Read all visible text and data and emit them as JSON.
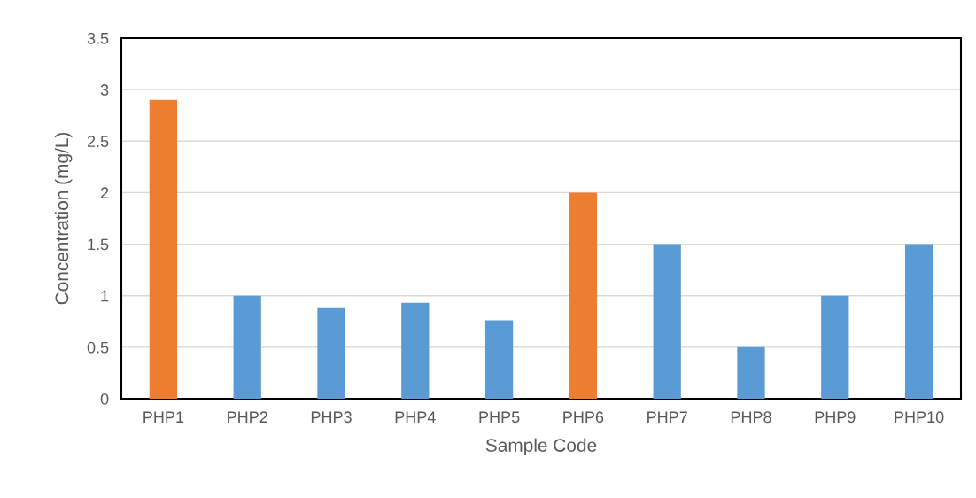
{
  "chart_data": {
    "type": "bar",
    "xlabel": "Sample Code",
    "ylabel": "Concentration (mg/L)",
    "categories": [
      "PHP1",
      "PHP2",
      "PHP3",
      "PHP4",
      "PHP5",
      "PHP6",
      "PHP7",
      "PHP8",
      "PHP9",
      "PHP10"
    ],
    "values": [
      2.9,
      1.0,
      0.88,
      0.93,
      0.76,
      2.0,
      1.5,
      0.5,
      1.0,
      1.5
    ],
    "colors": [
      "#ed7d31",
      "#5b9bd5",
      "#5b9bd5",
      "#5b9bd5",
      "#5b9bd5",
      "#ed7d31",
      "#5b9bd5",
      "#5b9bd5",
      "#5b9bd5",
      "#5b9bd5"
    ],
    "ylim": [
      0,
      3.5
    ],
    "yticks": [
      0,
      0.5,
      1,
      1.5,
      2,
      2.5,
      3,
      3.5
    ],
    "grid": "y",
    "legend": false
  }
}
